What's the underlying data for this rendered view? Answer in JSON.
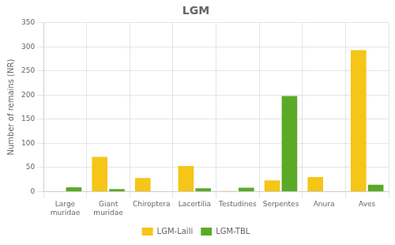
{
  "chart_data": {
    "type": "bar",
    "title": "LGM",
    "ylabel": "Number of remains (NR)",
    "categories": [
      "Large\nmuridae",
      "Giant\nmuridae",
      "Chiroptera",
      "Lacertilia",
      "Testudines",
      "Serpentes",
      "Anura",
      "Aves"
    ],
    "series": [
      {
        "name": "LGM-Laili",
        "color": "#F5C518",
        "values": [
          0,
          72,
          28,
          53,
          1,
          23,
          30,
          293
        ]
      },
      {
        "name": "LGM-TBL",
        "color": "#5AAA28",
        "values": [
          9,
          5,
          0,
          7,
          8,
          198,
          0,
          14
        ]
      }
    ],
    "ylim": [
      0,
      350
    ],
    "yticks": [
      0,
      50,
      100,
      150,
      200,
      250,
      300,
      350
    ],
    "grid": true,
    "legend": "bottom"
  }
}
